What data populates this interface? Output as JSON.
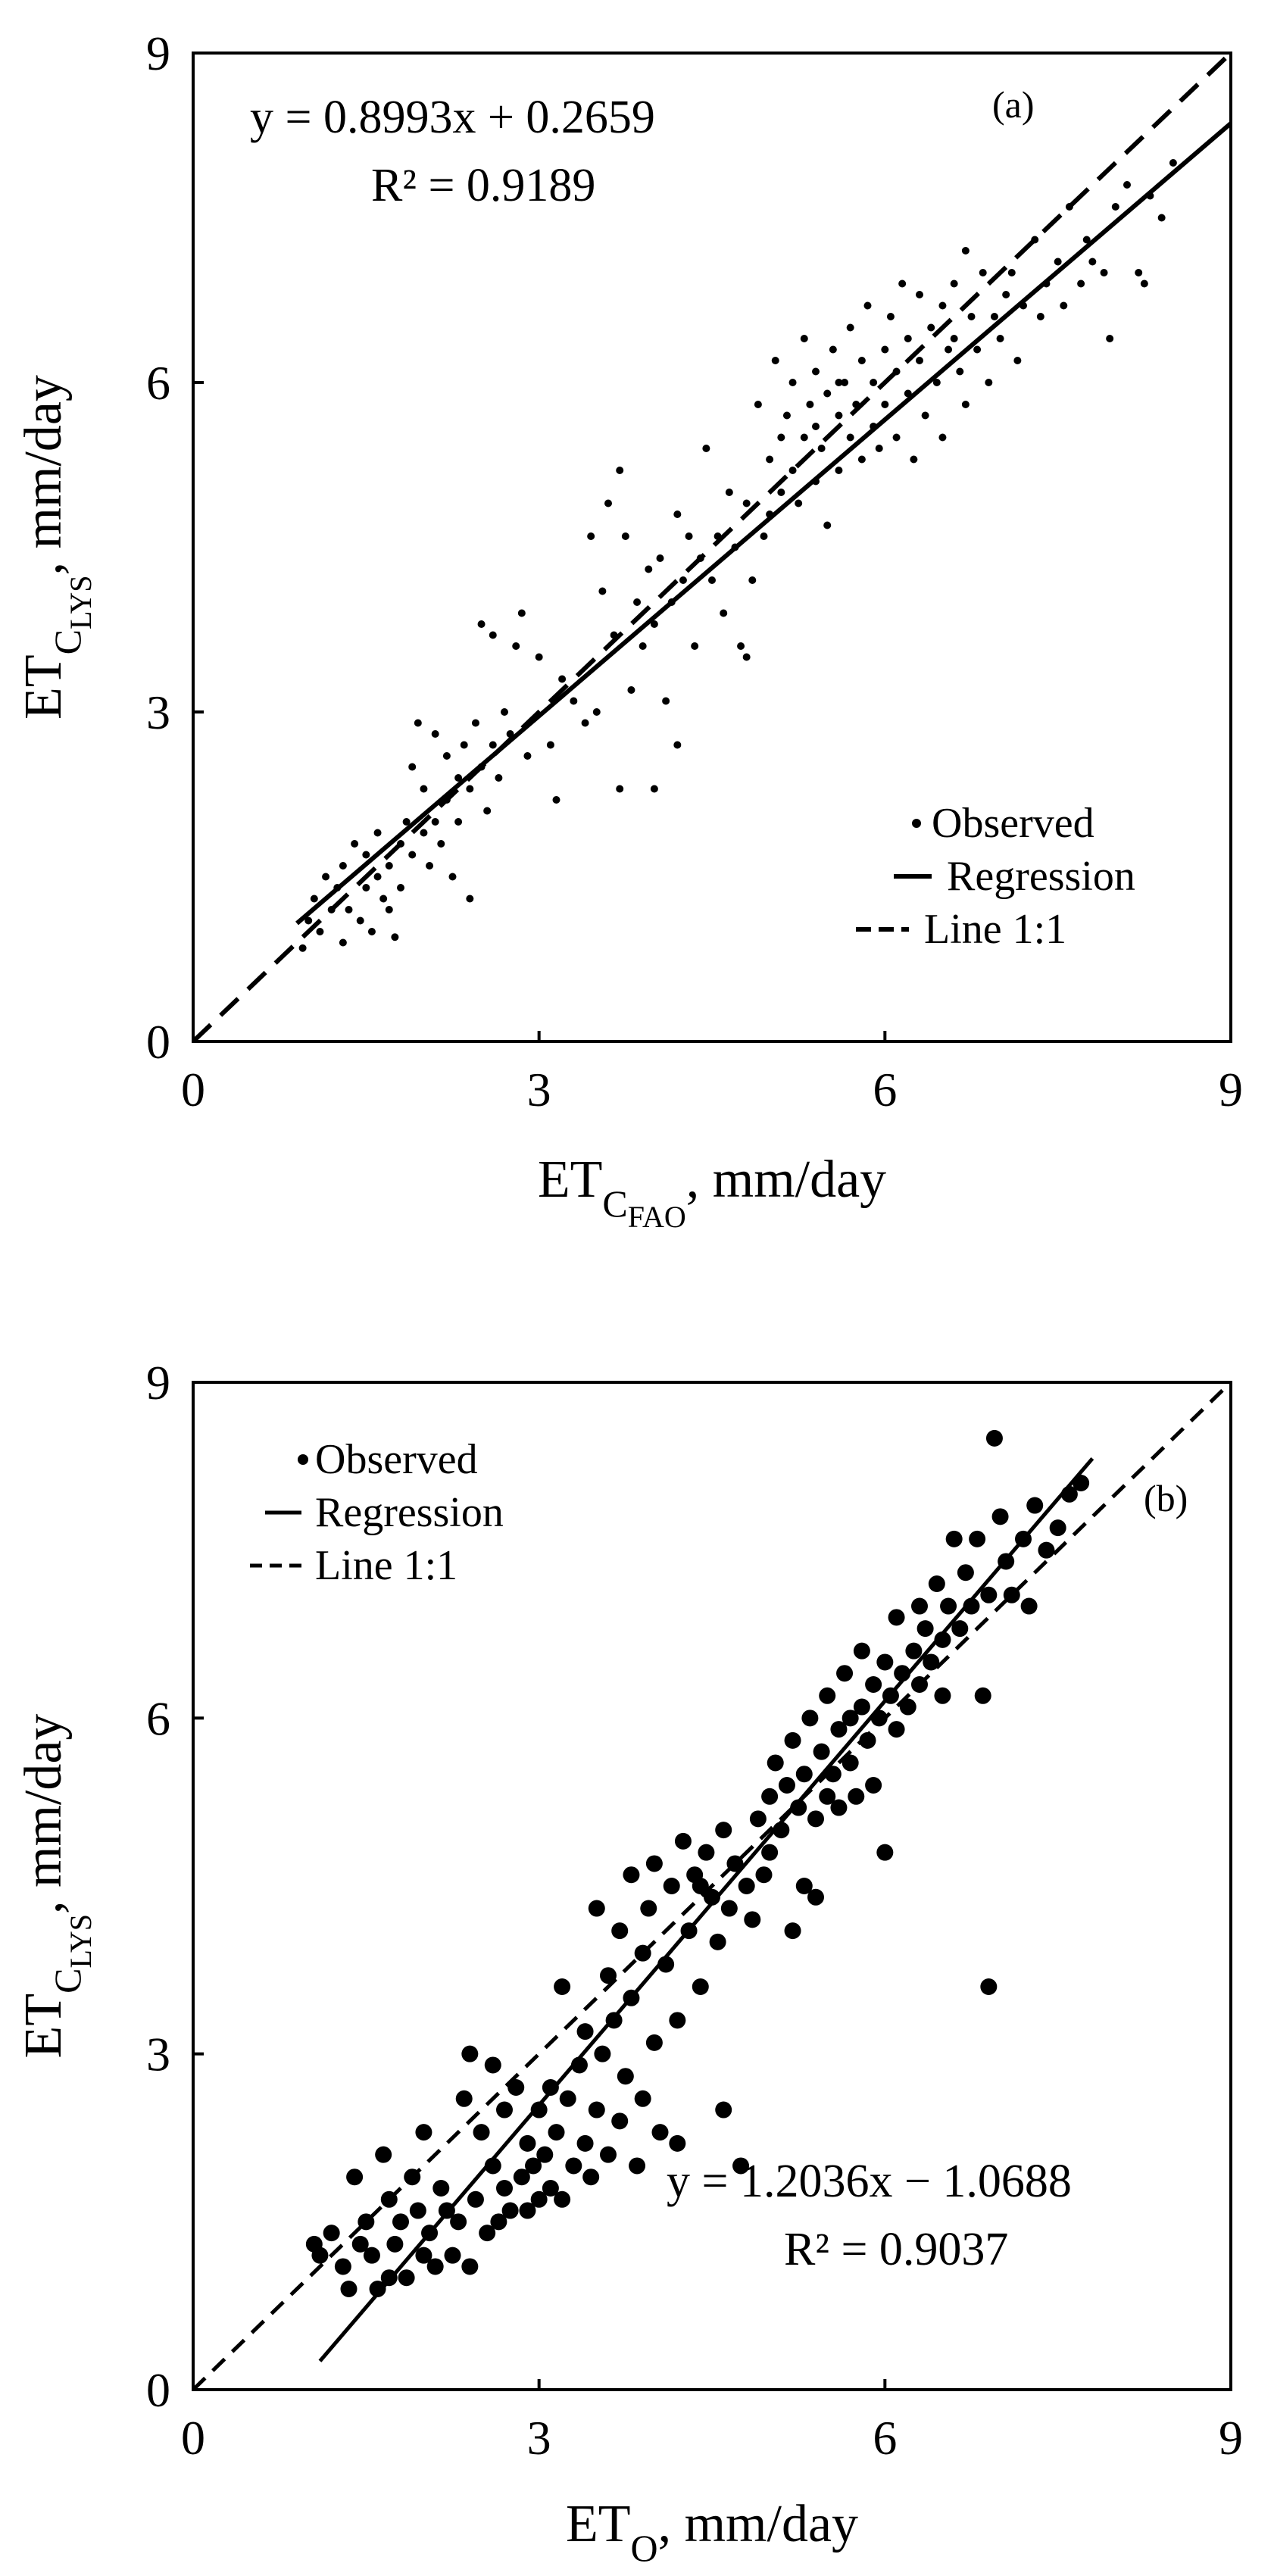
{
  "chart_data": [
    {
      "type": "scatter",
      "panel_label": "(a)",
      "xlabel": {
        "main": "ET",
        "sub": "C",
        "subsub": "FAO",
        "suffix": ", mm/day"
      },
      "ylabel": {
        "main": "ET",
        "sub": "C",
        "subsub": "LYS",
        "suffix": ", mm/day"
      },
      "xlim": [
        0,
        9
      ],
      "ylim": [
        0,
        9
      ],
      "xticks": [
        "0",
        "3",
        "6",
        "9"
      ],
      "yticks": [
        "0",
        "3",
        "6",
        "9"
      ],
      "grid": false,
      "legend": {
        "position": "bottom-right",
        "entries": [
          "Observed",
          "Regression",
          "Line 1:1"
        ]
      },
      "equation": "y = 0.8993x + 0.2659",
      "r2": "R² = 0.9189",
      "annotation_position": "top-left",
      "regression": {
        "slope": 0.8993,
        "intercept": 0.2659,
        "x_range": [
          0.9,
          9.0
        ]
      },
      "identity_line": {
        "x_range": [
          0,
          9
        ]
      },
      "point_style": "small",
      "points": [
        [
          0.95,
          0.85
        ],
        [
          1.0,
          1.1
        ],
        [
          1.05,
          1.3
        ],
        [
          1.1,
          1.0
        ],
        [
          1.15,
          1.5
        ],
        [
          1.2,
          1.2
        ],
        [
          1.25,
          1.4
        ],
        [
          1.3,
          0.9
        ],
        [
          1.3,
          1.6
        ],
        [
          1.35,
          1.2
        ],
        [
          1.4,
          1.8
        ],
        [
          1.45,
          1.1
        ],
        [
          1.5,
          1.4
        ],
        [
          1.5,
          1.7
        ],
        [
          1.55,
          1.0
        ],
        [
          1.6,
          1.5
        ],
        [
          1.6,
          1.9
        ],
        [
          1.65,
          1.3
        ],
        [
          1.7,
          1.2
        ],
        [
          1.7,
          1.6
        ],
        [
          1.75,
          0.95
        ],
        [
          1.8,
          1.4
        ],
        [
          1.8,
          1.8
        ],
        [
          1.85,
          2.0
        ],
        [
          1.9,
          1.7
        ],
        [
          1.9,
          2.5
        ],
        [
          1.95,
          2.9
        ],
        [
          2.0,
          1.9
        ],
        [
          2.0,
          2.3
        ],
        [
          2.05,
          1.6
        ],
        [
          2.1,
          2.0
        ],
        [
          2.1,
          2.8
        ],
        [
          2.15,
          1.8
        ],
        [
          2.2,
          2.2
        ],
        [
          2.2,
          2.6
        ],
        [
          2.25,
          1.5
        ],
        [
          2.3,
          2.4
        ],
        [
          2.3,
          2.0
        ],
        [
          2.35,
          2.7
        ],
        [
          2.4,
          1.3
        ],
        [
          2.4,
          2.3
        ],
        [
          2.45,
          2.9
        ],
        [
          2.5,
          2.5
        ],
        [
          2.5,
          3.8
        ],
        [
          2.55,
          2.1
        ],
        [
          2.6,
          2.7
        ],
        [
          2.6,
          3.7
        ],
        [
          2.65,
          2.4
        ],
        [
          2.7,
          3.0
        ],
        [
          2.75,
          2.8
        ],
        [
          2.8,
          3.6
        ],
        [
          2.85,
          3.9
        ],
        [
          2.9,
          2.6
        ],
        [
          3.0,
          3.5
        ],
        [
          3.1,
          2.7
        ],
        [
          3.15,
          2.2
        ],
        [
          3.2,
          3.3
        ],
        [
          3.3,
          3.1
        ],
        [
          3.4,
          2.9
        ],
        [
          3.45,
          4.6
        ],
        [
          3.5,
          3.0
        ],
        [
          3.55,
          4.1
        ],
        [
          3.6,
          4.9
        ],
        [
          3.65,
          3.7
        ],
        [
          3.7,
          5.2
        ],
        [
          3.7,
          2.3
        ],
        [
          3.75,
          4.6
        ],
        [
          3.8,
          3.2
        ],
        [
          3.85,
          4.0
        ],
        [
          3.9,
          3.6
        ],
        [
          3.95,
          4.3
        ],
        [
          4.0,
          3.8
        ],
        [
          4.0,
          2.3
        ],
        [
          4.05,
          4.4
        ],
        [
          4.1,
          3.1
        ],
        [
          4.15,
          4.0
        ],
        [
          4.2,
          2.7
        ],
        [
          4.2,
          4.8
        ],
        [
          4.25,
          4.2
        ],
        [
          4.3,
          4.6
        ],
        [
          4.35,
          3.6
        ],
        [
          4.4,
          4.4
        ],
        [
          4.45,
          5.4
        ],
        [
          4.5,
          4.2
        ],
        [
          4.55,
          4.6
        ],
        [
          4.6,
          3.9
        ],
        [
          4.65,
          5.0
        ],
        [
          4.7,
          4.5
        ],
        [
          4.75,
          3.6
        ],
        [
          4.8,
          3.5
        ],
        [
          4.8,
          4.9
        ],
        [
          4.85,
          4.2
        ],
        [
          4.9,
          5.8
        ],
        [
          4.95,
          4.6
        ],
        [
          5.0,
          5.3
        ],
        [
          5.0,
          4.8
        ],
        [
          5.05,
          6.2
        ],
        [
          5.1,
          5.5
        ],
        [
          5.1,
          5.0
        ],
        [
          5.15,
          5.7
        ],
        [
          5.2,
          5.2
        ],
        [
          5.2,
          6.0
        ],
        [
          5.25,
          4.9
        ],
        [
          5.3,
          5.5
        ],
        [
          5.3,
          6.4
        ],
        [
          5.35,
          5.8
        ],
        [
          5.4,
          5.1
        ],
        [
          5.4,
          6.1
        ],
        [
          5.45,
          5.4
        ],
        [
          5.5,
          4.7
        ],
        [
          5.5,
          5.9
        ],
        [
          5.55,
          6.3
        ],
        [
          5.6,
          5.2
        ],
        [
          5.6,
          5.7
        ],
        [
          5.65,
          6.0
        ],
        [
          5.7,
          5.5
        ],
        [
          5.7,
          6.5
        ],
        [
          5.75,
          5.8
        ],
        [
          5.8,
          5.3
        ],
        [
          5.8,
          6.2
        ],
        [
          5.85,
          6.7
        ],
        [
          5.9,
          5.6
        ],
        [
          5.9,
          6.0
        ],
        [
          5.95,
          5.4
        ],
        [
          6.0,
          6.3
        ],
        [
          6.0,
          5.8
        ],
        [
          6.05,
          6.6
        ],
        [
          6.1,
          5.5
        ],
        [
          6.1,
          6.1
        ],
        [
          6.15,
          6.9
        ],
        [
          6.2,
          5.9
        ],
        [
          6.2,
          6.4
        ],
        [
          6.25,
          5.3
        ],
        [
          6.3,
          6.2
        ],
        [
          6.3,
          6.8
        ],
        [
          6.35,
          5.7
        ],
        [
          6.4,
          6.5
        ],
        [
          6.45,
          6.0
        ],
        [
          6.5,
          6.7
        ],
        [
          6.5,
          5.5
        ],
        [
          6.55,
          6.3
        ],
        [
          6.6,
          6.9
        ],
        [
          6.65,
          6.1
        ],
        [
          6.7,
          7.2
        ],
        [
          6.7,
          5.8
        ],
        [
          6.75,
          6.6
        ],
        [
          6.8,
          6.3
        ],
        [
          6.85,
          7.0
        ],
        [
          6.9,
          6.0
        ],
        [
          6.95,
          6.6
        ],
        [
          7.0,
          6.4
        ],
        [
          7.05,
          6.8
        ],
        [
          7.1,
          7.0
        ],
        [
          7.15,
          6.2
        ],
        [
          7.2,
          6.7
        ],
        [
          7.3,
          7.3
        ],
        [
          7.35,
          6.6
        ],
        [
          7.4,
          6.9
        ],
        [
          7.5,
          7.1
        ],
        [
          7.55,
          6.7
        ],
        [
          7.6,
          7.6
        ],
        [
          7.7,
          6.9
        ],
        [
          7.75,
          7.3
        ],
        [
          7.8,
          7.1
        ],
        [
          7.9,
          7.0
        ],
        [
          7.95,
          6.4
        ],
        [
          8.0,
          7.6
        ],
        [
          8.1,
          7.8
        ],
        [
          8.2,
          7.0
        ],
        [
          8.25,
          6.9
        ],
        [
          8.4,
          7.5
        ],
        [
          8.5,
          8.0
        ],
        [
          8.3,
          7.7
        ],
        [
          6.6,
          6.4
        ],
        [
          5.6,
          6.0
        ],
        [
          5.4,
          5.6
        ]
      ]
    },
    {
      "type": "scatter",
      "panel_label": "(b)",
      "xlabel": {
        "main": "ET",
        "sub": "O",
        "subsub": "",
        "suffix": ", mm/day"
      },
      "ylabel": {
        "main": "ET",
        "sub": "C",
        "subsub": "LYS",
        "suffix": ", mm/day"
      },
      "xlim": [
        0,
        9
      ],
      "ylim": [
        0,
        9
      ],
      "xticks": [
        "0",
        "3",
        "6",
        "9"
      ],
      "yticks": [
        "0",
        "3",
        "6",
        "9"
      ],
      "grid": false,
      "legend": {
        "position": "top-left",
        "entries": [
          "Observed",
          "Regression",
          "Line 1:1"
        ]
      },
      "equation": "y = 1.2036x − 1.0688",
      "r2": "R² = 0.9037",
      "annotation_position": "bottom-right",
      "regression": {
        "slope": 1.2036,
        "intercept": -1.0688,
        "x_range": [
          1.1,
          7.8
        ]
      },
      "identity_line": {
        "x_range": [
          0,
          9
        ]
      },
      "point_style": "large",
      "points": [
        [
          1.05,
          1.3
        ],
        [
          1.1,
          1.2
        ],
        [
          1.2,
          1.4
        ],
        [
          1.3,
          1.1
        ],
        [
          1.35,
          0.9
        ],
        [
          1.4,
          1.9
        ],
        [
          1.45,
          1.3
        ],
        [
          1.5,
          1.5
        ],
        [
          1.55,
          1.2
        ],
        [
          1.6,
          0.9
        ],
        [
          1.65,
          2.1
        ],
        [
          1.7,
          1.0
        ],
        [
          1.7,
          1.7
        ],
        [
          1.75,
          1.3
        ],
        [
          1.8,
          1.5
        ],
        [
          1.85,
          1.0
        ],
        [
          1.9,
          1.9
        ],
        [
          1.95,
          1.6
        ],
        [
          2.0,
          1.2
        ],
        [
          2.0,
          2.3
        ],
        [
          2.05,
          1.4
        ],
        [
          2.1,
          1.1
        ],
        [
          2.15,
          1.8
        ],
        [
          2.2,
          1.6
        ],
        [
          2.25,
          1.2
        ],
        [
          2.3,
          1.5
        ],
        [
          2.35,
          2.6
        ],
        [
          2.4,
          1.1
        ],
        [
          2.4,
          3.0
        ],
        [
          2.45,
          1.7
        ],
        [
          2.5,
          2.3
        ],
        [
          2.55,
          1.4
        ],
        [
          2.6,
          2.9
        ],
        [
          2.6,
          2.0
        ],
        [
          2.65,
          1.5
        ],
        [
          2.7,
          2.5
        ],
        [
          2.7,
          1.8
        ],
        [
          2.75,
          1.6
        ],
        [
          2.8,
          2.7
        ],
        [
          2.85,
          1.9
        ],
        [
          2.9,
          2.2
        ],
        [
          2.9,
          1.6
        ],
        [
          2.95,
          2.0
        ],
        [
          3.0,
          2.5
        ],
        [
          3.0,
          1.7
        ],
        [
          3.05,
          2.1
        ],
        [
          3.1,
          1.8
        ],
        [
          3.1,
          2.7
        ],
        [
          3.15,
          2.3
        ],
        [
          3.2,
          3.6
        ],
        [
          3.2,
          1.7
        ],
        [
          3.25,
          2.6
        ],
        [
          3.3,
          2.0
        ],
        [
          3.35,
          2.9
        ],
        [
          3.4,
          2.2
        ],
        [
          3.4,
          3.2
        ],
        [
          3.45,
          1.9
        ],
        [
          3.5,
          4.3
        ],
        [
          3.5,
          2.5
        ],
        [
          3.55,
          3.0
        ],
        [
          3.6,
          3.7
        ],
        [
          3.6,
          2.1
        ],
        [
          3.65,
          3.3
        ],
        [
          3.7,
          4.1
        ],
        [
          3.7,
          2.4
        ],
        [
          3.75,
          2.8
        ],
        [
          3.8,
          4.6
        ],
        [
          3.8,
          3.5
        ],
        [
          3.85,
          2.0
        ],
        [
          3.9,
          3.9
        ],
        [
          3.9,
          2.6
        ],
        [
          3.95,
          4.3
        ],
        [
          4.0,
          3.1
        ],
        [
          4.0,
          4.7
        ],
        [
          4.05,
          2.3
        ],
        [
          4.1,
          3.8
        ],
        [
          4.15,
          4.5
        ],
        [
          4.2,
          3.3
        ],
        [
          4.2,
          2.2
        ],
        [
          4.25,
          4.9
        ],
        [
          4.3,
          4.1
        ],
        [
          4.35,
          4.6
        ],
        [
          4.4,
          3.6
        ],
        [
          4.45,
          4.8
        ],
        [
          4.5,
          4.4
        ],
        [
          4.55,
          4.0
        ],
        [
          4.6,
          5.0
        ],
        [
          4.6,
          2.5
        ],
        [
          4.65,
          4.3
        ],
        [
          4.7,
          4.7
        ],
        [
          4.75,
          2.0
        ],
        [
          4.8,
          4.5
        ],
        [
          4.85,
          4.2
        ],
        [
          4.9,
          5.1
        ],
        [
          4.95,
          4.6
        ],
        [
          5.0,
          5.3
        ],
        [
          5.0,
          4.8
        ],
        [
          5.05,
          5.6
        ],
        [
          5.1,
          5.0
        ],
        [
          5.15,
          5.4
        ],
        [
          5.2,
          4.1
        ],
        [
          5.2,
          5.8
        ],
        [
          5.25,
          5.2
        ],
        [
          5.3,
          5.5
        ],
        [
          5.35,
          6.0
        ],
        [
          5.4,
          5.1
        ],
        [
          5.4,
          4.4
        ],
        [
          5.45,
          5.7
        ],
        [
          5.5,
          5.3
        ],
        [
          5.5,
          6.2
        ],
        [
          5.55,
          5.5
        ],
        [
          5.6,
          5.9
        ],
        [
          5.6,
          5.2
        ],
        [
          5.65,
          6.4
        ],
        [
          5.7,
          5.6
        ],
        [
          5.7,
          6.0
        ],
        [
          5.75,
          5.3
        ],
        [
          5.8,
          6.1
        ],
        [
          5.8,
          6.6
        ],
        [
          5.85,
          5.8
        ],
        [
          5.9,
          6.3
        ],
        [
          5.9,
          5.4
        ],
        [
          5.95,
          6.0
        ],
        [
          6.0,
          6.5
        ],
        [
          6.0,
          4.8
        ],
        [
          6.05,
          6.2
        ],
        [
          6.1,
          5.9
        ],
        [
          6.1,
          6.9
        ],
        [
          6.15,
          6.4
        ],
        [
          6.2,
          6.1
        ],
        [
          6.25,
          6.6
        ],
        [
          6.3,
          7.0
        ],
        [
          6.3,
          6.3
        ],
        [
          6.35,
          6.8
        ],
        [
          6.4,
          6.5
        ],
        [
          6.45,
          7.2
        ],
        [
          6.5,
          6.7
        ],
        [
          6.5,
          6.2
        ],
        [
          6.55,
          7.0
        ],
        [
          6.6,
          7.6
        ],
        [
          6.65,
          6.8
        ],
        [
          6.7,
          7.3
        ],
        [
          6.75,
          7.0
        ],
        [
          6.8,
          7.6
        ],
        [
          6.85,
          6.2
        ],
        [
          6.9,
          7.1
        ],
        [
          6.9,
          3.6
        ],
        [
          6.95,
          8.5
        ],
        [
          7.0,
          7.8
        ],
        [
          7.05,
          7.4
        ],
        [
          7.1,
          7.1
        ],
        [
          7.2,
          7.6
        ],
        [
          7.25,
          7.0
        ],
        [
          7.3,
          7.9
        ],
        [
          7.4,
          7.5
        ],
        [
          7.5,
          7.7
        ],
        [
          7.6,
          8.0
        ],
        [
          7.7,
          8.1
        ],
        [
          5.3,
          4.5
        ],
        [
          4.4,
          4.5
        ]
      ]
    }
  ]
}
